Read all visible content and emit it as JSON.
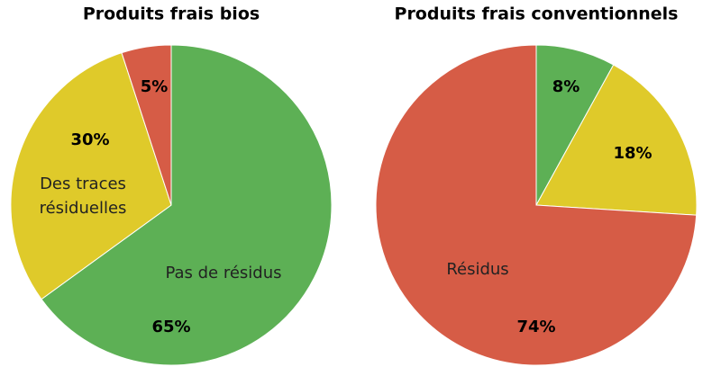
{
  "chart_data": [
    {
      "type": "pie",
      "title": "Produits frais bios",
      "categories": [
        "Pas de résidus",
        "Des traces résiduelles",
        null
      ],
      "values": [
        65,
        30,
        5
      ],
      "value_labels": [
        "65%",
        "30%",
        "5%"
      ],
      "colors": [
        "#5db055",
        "#dfca2a",
        "#d65c46"
      ]
    },
    {
      "type": "pie",
      "title": "Produits frais conventionnels",
      "categories": [
        null,
        null,
        "Résidus"
      ],
      "values": [
        8,
        18,
        74
      ],
      "value_labels": [
        "8%",
        "18%",
        "74%"
      ],
      "colors": [
        "#5db055",
        "#dfca2a",
        "#d65c46"
      ]
    }
  ]
}
